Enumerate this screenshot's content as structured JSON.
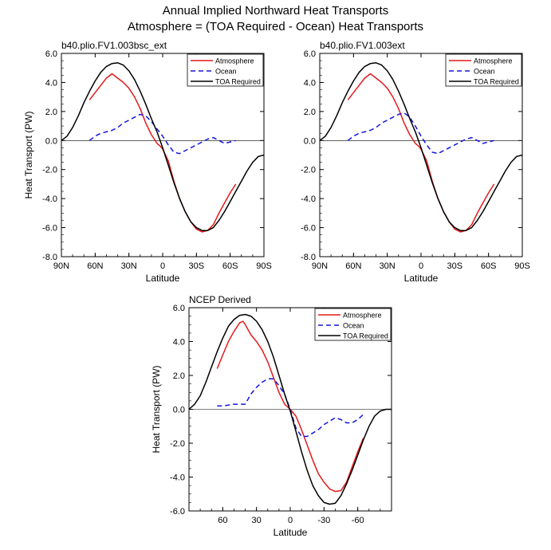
{
  "figure": {
    "title_line1": "Annual Implied Northward Heat Transports",
    "title_line2": "Atmosphere = (TOA Required - Ocean) Heat Transports"
  },
  "colors": {
    "Atmosphere": "#e31a1c",
    "Ocean": "#1515e0",
    "TOA Required": "#000000"
  },
  "chart_data": [
    {
      "type": "line",
      "title": "b40.plio.FV1.003bsc_ext",
      "xlabel": "Latitude",
      "ylabel": "Heat Transport (PW)",
      "xlim": [
        90,
        -90
      ],
      "ylim": [
        -8,
        6
      ],
      "xticks": [
        90,
        60,
        30,
        0,
        -30,
        -60,
        -90
      ],
      "xtick_labels": [
        "90N",
        "60N",
        "30N",
        "0",
        "30S",
        "60S",
        "90S"
      ],
      "yticks": [
        -8,
        -6,
        -4,
        -2,
        0,
        2,
        4,
        6
      ],
      "ytick_labels": [
        "-8.0",
        "-6.0",
        "-4.0",
        "-2.0",
        "0.0",
        "2.0",
        "4.0",
        "6.0"
      ],
      "legend": "top-right",
      "series": [
        {
          "name": "Atmosphere",
          "style": "solid",
          "x": [
            65,
            60,
            55,
            50,
            45,
            40,
            35,
            30,
            25,
            20,
            15,
            10,
            5,
            2,
            0,
            -5,
            -10,
            -15,
            -20,
            -25,
            -30,
            -35,
            -40,
            -45,
            -50,
            -55,
            -60,
            -65
          ],
          "y": [
            2.8,
            3.3,
            3.8,
            4.3,
            4.6,
            4.3,
            4.0,
            3.6,
            3.0,
            2.2,
            1.2,
            0.4,
            -0.2,
            -0.4,
            -0.6,
            -1.4,
            -2.8,
            -4.0,
            -4.9,
            -5.6,
            -6.1,
            -6.3,
            -6.2,
            -5.8,
            -5.0,
            -4.3,
            -3.6,
            -3.0
          ]
        },
        {
          "name": "Ocean",
          "style": "dashed",
          "x": [
            65,
            60,
            55,
            50,
            45,
            40,
            35,
            30,
            25,
            20,
            15,
            10,
            5,
            0,
            -5,
            -10,
            -15,
            -20,
            -25,
            -30,
            -35,
            -40,
            -45,
            -50,
            -55,
            -60,
            -65
          ],
          "y": [
            0.0,
            0.3,
            0.5,
            0.6,
            0.7,
            0.9,
            1.2,
            1.4,
            1.6,
            1.8,
            1.7,
            1.3,
            0.8,
            0.3,
            -0.3,
            -0.8,
            -0.9,
            -0.7,
            -0.5,
            -0.3,
            -0.1,
            0.1,
            0.2,
            0.0,
            -0.2,
            -0.1,
            0.0
          ]
        },
        {
          "name": "TOA Required",
          "style": "solid",
          "x": [
            90,
            85,
            80,
            75,
            70,
            65,
            60,
            55,
            50,
            45,
            40,
            35,
            30,
            25,
            20,
            15,
            10,
            5,
            0,
            -5,
            -10,
            -15,
            -20,
            -25,
            -30,
            -35,
            -40,
            -45,
            -50,
            -55,
            -60,
            -65,
            -70,
            -75,
            -80,
            -85,
            -90
          ],
          "y": [
            0.0,
            0.3,
            0.9,
            1.7,
            2.6,
            3.4,
            4.1,
            4.7,
            5.1,
            5.3,
            5.35,
            5.2,
            4.8,
            4.2,
            3.4,
            2.5,
            1.5,
            0.6,
            -0.5,
            -1.7,
            -2.9,
            -4.0,
            -4.9,
            -5.6,
            -6.0,
            -6.2,
            -6.2,
            -6.0,
            -5.5,
            -4.9,
            -4.2,
            -3.5,
            -2.8,
            -2.1,
            -1.5,
            -1.1,
            -1.0
          ]
        }
      ]
    },
    {
      "type": "line",
      "title": "b40.plio.FV1.003ext",
      "xlabel": "Latitude",
      "ylabel": "",
      "xlim": [
        90,
        -90
      ],
      "ylim": [
        -8,
        6
      ],
      "xticks": [
        90,
        60,
        30,
        0,
        -30,
        -60,
        -90
      ],
      "xtick_labels": [
        "90N",
        "60N",
        "30N",
        "0",
        "30S",
        "60S",
        "90S"
      ],
      "yticks": [
        -8,
        -6,
        -4,
        -2,
        0,
        2,
        4,
        6
      ],
      "ytick_labels": [
        "-8.0",
        "-6.0",
        "-4.0",
        "-2.0",
        "0.0",
        "2.0",
        "4.0",
        "6.0"
      ],
      "legend": "top-right",
      "series": [
        {
          "name": "Atmosphere",
          "style": "solid",
          "x": [
            65,
            60,
            55,
            50,
            45,
            40,
            35,
            30,
            25,
            20,
            15,
            10,
            5,
            2,
            0,
            -5,
            -10,
            -15,
            -20,
            -25,
            -30,
            -35,
            -40,
            -45,
            -50,
            -55,
            -60,
            -65
          ],
          "y": [
            2.8,
            3.3,
            3.8,
            4.3,
            4.6,
            4.3,
            4.0,
            3.6,
            3.0,
            2.2,
            1.2,
            0.4,
            -0.2,
            -0.4,
            -0.6,
            -1.4,
            -2.8,
            -4.0,
            -4.9,
            -5.6,
            -6.1,
            -6.3,
            -6.2,
            -5.8,
            -5.0,
            -4.3,
            -3.6,
            -3.0
          ]
        },
        {
          "name": "Ocean",
          "style": "dashed",
          "x": [
            65,
            60,
            55,
            50,
            45,
            40,
            35,
            30,
            25,
            20,
            15,
            10,
            5,
            0,
            -5,
            -10,
            -15,
            -20,
            -25,
            -30,
            -35,
            -40,
            -45,
            -50,
            -55,
            -60,
            -65
          ],
          "y": [
            0.0,
            0.3,
            0.5,
            0.6,
            0.7,
            0.9,
            1.2,
            1.4,
            1.6,
            1.8,
            1.9,
            1.6,
            1.0,
            0.3,
            -0.3,
            -0.8,
            -0.9,
            -0.7,
            -0.5,
            -0.3,
            -0.1,
            0.1,
            0.2,
            0.0,
            -0.2,
            -0.1,
            0.0
          ]
        },
        {
          "name": "TOA Required",
          "style": "solid",
          "x": [
            90,
            85,
            80,
            75,
            70,
            65,
            60,
            55,
            50,
            45,
            40,
            35,
            30,
            25,
            20,
            15,
            10,
            5,
            0,
            -5,
            -10,
            -15,
            -20,
            -25,
            -30,
            -35,
            -40,
            -45,
            -50,
            -55,
            -60,
            -65,
            -70,
            -75,
            -80,
            -85,
            -90
          ],
          "y": [
            0.0,
            0.3,
            0.9,
            1.7,
            2.6,
            3.4,
            4.1,
            4.7,
            5.1,
            5.3,
            5.35,
            5.2,
            4.8,
            4.2,
            3.4,
            2.5,
            1.5,
            0.6,
            -0.5,
            -1.7,
            -2.9,
            -4.0,
            -4.9,
            -5.6,
            -6.0,
            -6.2,
            -6.2,
            -6.0,
            -5.5,
            -4.9,
            -4.2,
            -3.5,
            -2.8,
            -2.1,
            -1.5,
            -1.1,
            -1.0
          ]
        }
      ]
    },
    {
      "type": "line",
      "title": "NCEP Derived",
      "xlabel": "Latitude",
      "ylabel": "Heat Transport (PW)",
      "xlim": [
        90,
        -90
      ],
      "ylim": [
        -6,
        6
      ],
      "xticks": [
        60,
        30,
        0,
        -30,
        -60
      ],
      "xtick_labels": [
        "60",
        "30",
        "0",
        "-30",
        "-60"
      ],
      "yticks": [
        -6,
        -4,
        -2,
        0,
        2,
        4,
        6
      ],
      "ytick_labels": [
        "-6.0",
        "-4.0",
        "-2.0",
        "0.0",
        "2.0",
        "4.0",
        "6.0"
      ],
      "legend": "top-right",
      "series": [
        {
          "name": "Atmosphere",
          "style": "solid",
          "x": [
            65,
            60,
            55,
            50,
            45,
            42,
            40,
            35,
            30,
            25,
            20,
            15,
            10,
            5,
            0,
            -5,
            -10,
            -15,
            -20,
            -25,
            -30,
            -35,
            -40,
            -45,
            -50,
            -55,
            -60,
            -65
          ],
          "y": [
            2.4,
            3.2,
            4.0,
            4.6,
            5.1,
            5.2,
            5.0,
            4.4,
            4.0,
            3.5,
            2.8,
            1.9,
            1.0,
            0.3,
            0.0,
            -0.4,
            -1.2,
            -2.1,
            -3.0,
            -3.8,
            -4.3,
            -4.7,
            -4.85,
            -4.8,
            -4.3,
            -3.4,
            -2.5,
            -1.7
          ]
        },
        {
          "name": "Ocean",
          "style": "dashed",
          "x": [
            65,
            60,
            55,
            50,
            45,
            40,
            35,
            30,
            25,
            20,
            15,
            10,
            5,
            0,
            -5,
            -10,
            -15,
            -20,
            -25,
            -30,
            -35,
            -40,
            -45,
            -50,
            -55,
            -60,
            -65
          ],
          "y": [
            0.2,
            0.2,
            0.25,
            0.3,
            0.3,
            0.3,
            0.9,
            1.3,
            1.6,
            1.8,
            1.8,
            1.4,
            0.9,
            0.0,
            -1.1,
            -1.6,
            -1.6,
            -1.4,
            -1.2,
            -0.9,
            -0.7,
            -0.5,
            -0.6,
            -0.8,
            -0.8,
            -0.6,
            -0.3
          ]
        },
        {
          "name": "TOA Required",
          "style": "solid",
          "x": [
            90,
            85,
            80,
            75,
            70,
            65,
            60,
            55,
            50,
            45,
            40,
            35,
            30,
            25,
            20,
            15,
            10,
            5,
            0,
            -5,
            -10,
            -15,
            -20,
            -25,
            -30,
            -35,
            -40,
            -45,
            -50,
            -55,
            -60,
            -65,
            -70,
            -75,
            -80,
            -85,
            -90
          ],
          "y": [
            0.0,
            0.3,
            0.8,
            1.6,
            2.5,
            3.4,
            4.2,
            4.9,
            5.3,
            5.55,
            5.6,
            5.5,
            5.2,
            4.7,
            4.0,
            3.1,
            2.0,
            0.9,
            -0.1,
            -1.3,
            -2.5,
            -3.6,
            -4.5,
            -5.1,
            -5.5,
            -5.6,
            -5.55,
            -5.1,
            -4.4,
            -3.6,
            -2.7,
            -1.8,
            -1.0,
            -0.4,
            -0.1,
            0.0,
            0.0
          ]
        }
      ]
    }
  ]
}
